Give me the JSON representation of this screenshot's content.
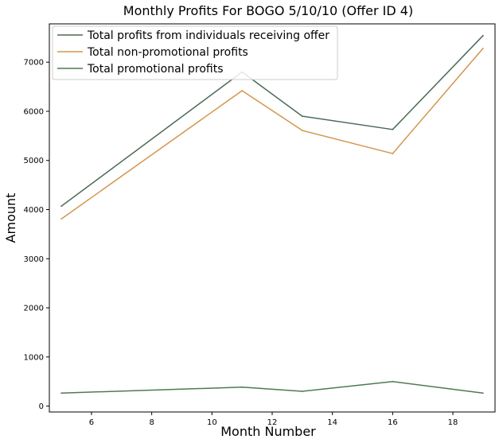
{
  "chart_data": {
    "type": "line",
    "title": "Monthly Profits For BOGO 5/10/10 (Offer ID 4)",
    "xlabel": "Month Number",
    "ylabel": "Amount",
    "xlim": [
      4.6,
      19.4
    ],
    "ylim": [
      -120,
      7780
    ],
    "xticks": [
      6,
      8,
      10,
      12,
      14,
      16,
      18
    ],
    "yticks": [
      0,
      1000,
      2000,
      3000,
      4000,
      5000,
      6000,
      7000
    ],
    "x": [
      5,
      11,
      13,
      16,
      19
    ],
    "series": [
      {
        "name": "Total profits from individuals receiving offer",
        "color": "#4b6a55",
        "values": [
          4070,
          6800,
          5900,
          5630,
          7540
        ]
      },
      {
        "name": "Total non-promotional profits",
        "color": "#d3964e",
        "values": [
          3810,
          6420,
          5610,
          5140,
          7280
        ]
      },
      {
        "name": "Total promotional profits",
        "color": "#4f7a4f",
        "values": [
          265,
          385,
          300,
          500,
          265
        ]
      }
    ],
    "legend_position": "top-left",
    "grid": false
  }
}
